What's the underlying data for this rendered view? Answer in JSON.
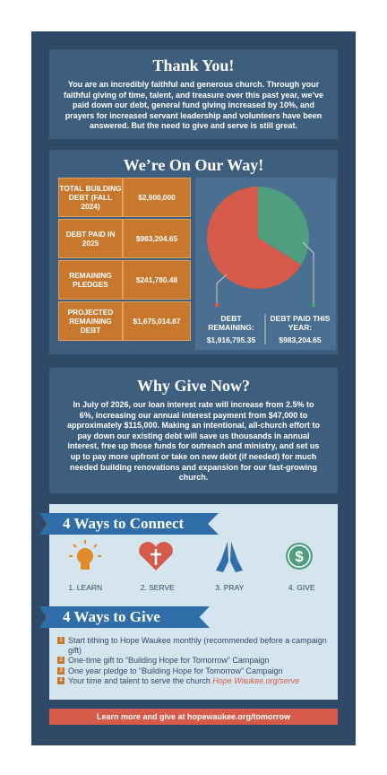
{
  "thank_you": {
    "title": "Thank You!",
    "body": "You are an incredibly faithful and generous church. Through your faithful giving of time, talent, and treasure over this past year, we’ve paid down our debt, general fund giving increased by 10%, and prayers for increased servant leadership and volunteers have been answered. But the need to give and serve is still great."
  },
  "on_our_way": {
    "title": "We’re On Our Way!",
    "table": {
      "rows": [
        [
          "TOTAL BUILDING DEBT (FALL 2024)",
          "$2,900,000"
        ],
        [
          "DEBT PAID IN 2025",
          "$983,204.65"
        ],
        [
          "REMAINING PLEDGES",
          "$241,780.48"
        ],
        [
          "PROJECTED REMAINING DEBT",
          "$1,675,014.87"
        ]
      ]
    },
    "pie": {
      "slices": [
        {
          "name": "DEBT PAID THIS YEAR:",
          "value": 983204.65,
          "value_label": "$983,204.65",
          "color": "#4f9e80"
        },
        {
          "name": "DEBT REMAINING:",
          "value": 1916795.35,
          "value_label": "$1,916,795.35",
          "color": "#d65a4a"
        }
      ]
    }
  },
  "why_give": {
    "title": "Why Give Now?",
    "body": "In July of 2026, our loan interest rate will increase from 2.5% to 6%, increasing our annual interest payment from $47,000 to approximately $115,000. Making an intentional, all-church effort to pay down our existing debt will save us thousands in annual interest, free up those funds for outreach and ministry, and set us up to pay more upfront or take on new debt (if needed) for much needed building renovations and expansion for our fast-growing church."
  },
  "connect": {
    "title": "4 Ways to Connect",
    "items": [
      "1. LEARN",
      "2. SERVE",
      "3. PRAY",
      "4. GIVE"
    ]
  },
  "give": {
    "title": "4 Ways to Give",
    "items": [
      {
        "number": "1",
        "text": "Start tithing to Hope Waukee monthly (recommended before a campaign gift)"
      },
      {
        "number": "2",
        "text": "One-time gift to “Building Hope for Tomorrow” Campaign"
      },
      {
        "number": "3",
        "text": "One year pledge to “Building Hope for Tomorrow” Campaign"
      },
      {
        "number": "4",
        "text": "Your time and talent to serve the church",
        "link": "Hope Waukee.org/serve"
      }
    ]
  },
  "footer": {
    "cta": "Learn more and give at hopewaukee.org/tomorrow"
  }
}
